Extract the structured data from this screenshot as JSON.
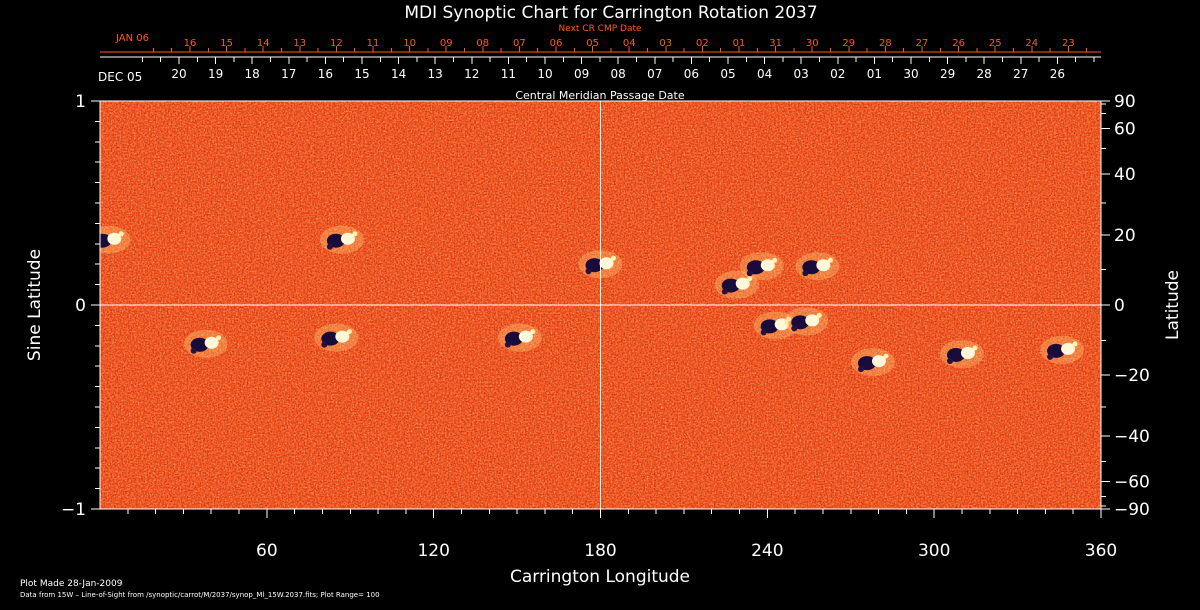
{
  "colors": {
    "background": "#000000",
    "accent": "#ff5a1e",
    "map_base": "#ff4a10",
    "map_light": "#fff1b0",
    "map_dark": "#1a0c3a"
  },
  "chart_data": {
    "type": "heatmap",
    "title": "MDI Synoptic Chart for Carrington Rotation 2037",
    "xlabel": "Carrington Longitude",
    "ylabel_left": "Sine Latitude",
    "ylabel_right": "Latitude",
    "xlim": [
      0,
      360
    ],
    "ylim": [
      -1,
      1
    ],
    "x_ticks": [
      60,
      120,
      180,
      240,
      300,
      360
    ],
    "y_ticks_left": [
      {
        "value": 1,
        "label": "1"
      },
      {
        "value": 0,
        "label": "0"
      },
      {
        "value": -1,
        "label": "−1"
      }
    ],
    "y_ticks_right": [
      {
        "value": 90,
        "label": "90"
      },
      {
        "value": 60,
        "label": "60"
      },
      {
        "value": 40,
        "label": "40"
      },
      {
        "value": 20,
        "label": "20"
      },
      {
        "value": 0,
        "label": "0"
      },
      {
        "value": -20,
        "label": "−20"
      },
      {
        "value": -40,
        "label": "−40"
      },
      {
        "value": -60,
        "label": "−60"
      },
      {
        "value": -90,
        "label": "−90"
      }
    ],
    "top_axis": {
      "label": "Central Meridian Passage Date",
      "start_label": "DEC 05",
      "dates": [
        "20",
        "19",
        "18",
        "17",
        "16",
        "15",
        "14",
        "13",
        "12",
        "11",
        "10",
        "09",
        "08",
        "07",
        "06",
        "05",
        "04",
        "03",
        "02",
        "01",
        "30",
        "29",
        "28",
        "27",
        "26"
      ]
    },
    "next_axis": {
      "label": "Next CR CMP Date",
      "start_label": "JAN 06",
      "dates": [
        "16",
        "15",
        "14",
        "13",
        "12",
        "11",
        "10",
        "09",
        "08",
        "07",
        "06",
        "05",
        "04",
        "03",
        "02",
        "01",
        "31",
        "30",
        "29",
        "28",
        "27",
        "26",
        "25",
        "24",
        "23"
      ]
    },
    "grid": "center crosshair at longitude 180 and latitude 0",
    "colorscale": "black-red-yellow-white (negative dark, positive light)",
    "plot_range": 100,
    "active_regions": [
      {
        "lon": 3,
        "sinlat": 0.32
      },
      {
        "lon": 87,
        "sinlat": 0.32
      },
      {
        "lon": 180,
        "sinlat": 0.2
      },
      {
        "lon": 229,
        "sinlat": 0.1
      },
      {
        "lon": 238,
        "sinlat": 0.19
      },
      {
        "lon": 258,
        "sinlat": 0.19
      },
      {
        "lon": 38,
        "sinlat": -0.19
      },
      {
        "lon": 85,
        "sinlat": -0.16
      },
      {
        "lon": 151,
        "sinlat": -0.16
      },
      {
        "lon": 243,
        "sinlat": -0.1
      },
      {
        "lon": 254,
        "sinlat": -0.08
      },
      {
        "lon": 278,
        "sinlat": -0.28
      },
      {
        "lon": 310,
        "sinlat": -0.24
      },
      {
        "lon": 346,
        "sinlat": -0.22
      }
    ]
  },
  "footer": {
    "line1": "Plot Made 28-Jan-2009",
    "line2": "Data from 15W – Line-of-Sight from /synoptic/carrot/M/2037/synop_Ml_15W.2037.fits; Plot Range=  100"
  }
}
